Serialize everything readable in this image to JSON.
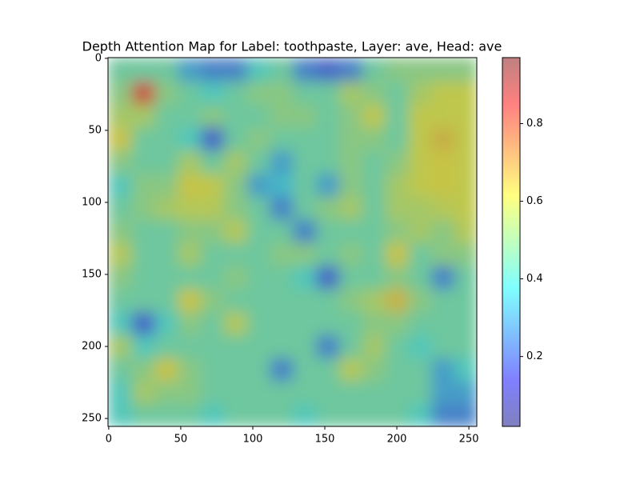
{
  "chart_data": {
    "type": "heatmap",
    "title": "Depth Attention Map for Label: toothpaste, Layer: ave, Head: ave",
    "xlim": [
      -0.5,
      255.5
    ],
    "ylim": [
      255.5,
      -0.5
    ],
    "xticks": [
      0,
      50,
      100,
      150,
      200,
      250
    ],
    "yticks": [
      0,
      50,
      100,
      150,
      200,
      250
    ],
    "x": [
      8,
      24,
      40,
      56,
      72,
      88,
      104,
      120,
      136,
      152,
      168,
      184,
      200,
      216,
      232,
      248
    ],
    "y": [
      8,
      24,
      40,
      56,
      72,
      88,
      104,
      120,
      136,
      152,
      168,
      184,
      200,
      216,
      232,
      248
    ],
    "z": [
      [
        0.45,
        0.45,
        0.45,
        0.3,
        0.25,
        0.25,
        0.4,
        0.45,
        0.25,
        0.2,
        0.25,
        0.45,
        0.5,
        0.5,
        0.5,
        0.5
      ],
      [
        0.5,
        0.82,
        0.5,
        0.45,
        0.4,
        0.45,
        0.5,
        0.5,
        0.45,
        0.45,
        0.55,
        0.5,
        0.45,
        0.55,
        0.6,
        0.6
      ],
      [
        0.55,
        0.55,
        0.45,
        0.45,
        0.5,
        0.45,
        0.45,
        0.5,
        0.5,
        0.45,
        0.5,
        0.6,
        0.45,
        0.6,
        0.6,
        0.6
      ],
      [
        0.62,
        0.45,
        0.45,
        0.4,
        0.2,
        0.45,
        0.5,
        0.45,
        0.45,
        0.45,
        0.5,
        0.5,
        0.45,
        0.6,
        0.66,
        0.6
      ],
      [
        0.5,
        0.45,
        0.45,
        0.55,
        0.45,
        0.55,
        0.45,
        0.3,
        0.45,
        0.45,
        0.5,
        0.45,
        0.5,
        0.6,
        0.62,
        0.6
      ],
      [
        0.4,
        0.5,
        0.5,
        0.62,
        0.6,
        0.5,
        0.3,
        0.35,
        0.45,
        0.3,
        0.5,
        0.45,
        0.55,
        0.6,
        0.62,
        0.6
      ],
      [
        0.45,
        0.5,
        0.55,
        0.58,
        0.58,
        0.5,
        0.45,
        0.25,
        0.45,
        0.5,
        0.55,
        0.45,
        0.55,
        0.55,
        0.58,
        0.6
      ],
      [
        0.5,
        0.45,
        0.45,
        0.5,
        0.5,
        0.58,
        0.45,
        0.45,
        0.25,
        0.45,
        0.45,
        0.45,
        0.5,
        0.55,
        0.5,
        0.58
      ],
      [
        0.58,
        0.45,
        0.45,
        0.55,
        0.45,
        0.45,
        0.45,
        0.5,
        0.5,
        0.45,
        0.5,
        0.45,
        0.62,
        0.45,
        0.5,
        0.5
      ],
      [
        0.5,
        0.45,
        0.45,
        0.45,
        0.45,
        0.5,
        0.45,
        0.45,
        0.4,
        0.2,
        0.45,
        0.45,
        0.5,
        0.45,
        0.25,
        0.45
      ],
      [
        0.45,
        0.45,
        0.45,
        0.62,
        0.5,
        0.45,
        0.45,
        0.45,
        0.45,
        0.45,
        0.5,
        0.55,
        0.65,
        0.5,
        0.45,
        0.45
      ],
      [
        0.4,
        0.2,
        0.4,
        0.5,
        0.45,
        0.58,
        0.45,
        0.45,
        0.45,
        0.45,
        0.45,
        0.5,
        0.5,
        0.45,
        0.45,
        0.45
      ],
      [
        0.55,
        0.4,
        0.45,
        0.45,
        0.45,
        0.45,
        0.45,
        0.45,
        0.45,
        0.25,
        0.45,
        0.55,
        0.45,
        0.4,
        0.45,
        0.45
      ],
      [
        0.45,
        0.5,
        0.62,
        0.5,
        0.45,
        0.45,
        0.45,
        0.25,
        0.45,
        0.45,
        0.58,
        0.5,
        0.45,
        0.45,
        0.3,
        0.4
      ],
      [
        0.4,
        0.55,
        0.5,
        0.5,
        0.45,
        0.45,
        0.45,
        0.45,
        0.45,
        0.45,
        0.45,
        0.45,
        0.45,
        0.45,
        0.3,
        0.3
      ],
      [
        0.4,
        0.45,
        0.45,
        0.45,
        0.4,
        0.45,
        0.45,
        0.45,
        0.4,
        0.45,
        0.45,
        0.45,
        0.45,
        0.4,
        0.25,
        0.25
      ]
    ],
    "clim": [
      0.02,
      0.97
    ],
    "cticks": [
      0.2,
      0.4,
      0.6,
      0.8
    ],
    "colorscale": [
      [
        0,
        "#00007f"
      ],
      [
        0.125,
        "#0000ff"
      ],
      [
        0.375,
        "#00ffff"
      ],
      [
        0.625,
        "#ffff00"
      ],
      [
        0.875,
        "#ff0000"
      ],
      [
        1,
        "#7f0000"
      ]
    ],
    "opacity": 0.5,
    "underlay": "#8c8c8c"
  }
}
